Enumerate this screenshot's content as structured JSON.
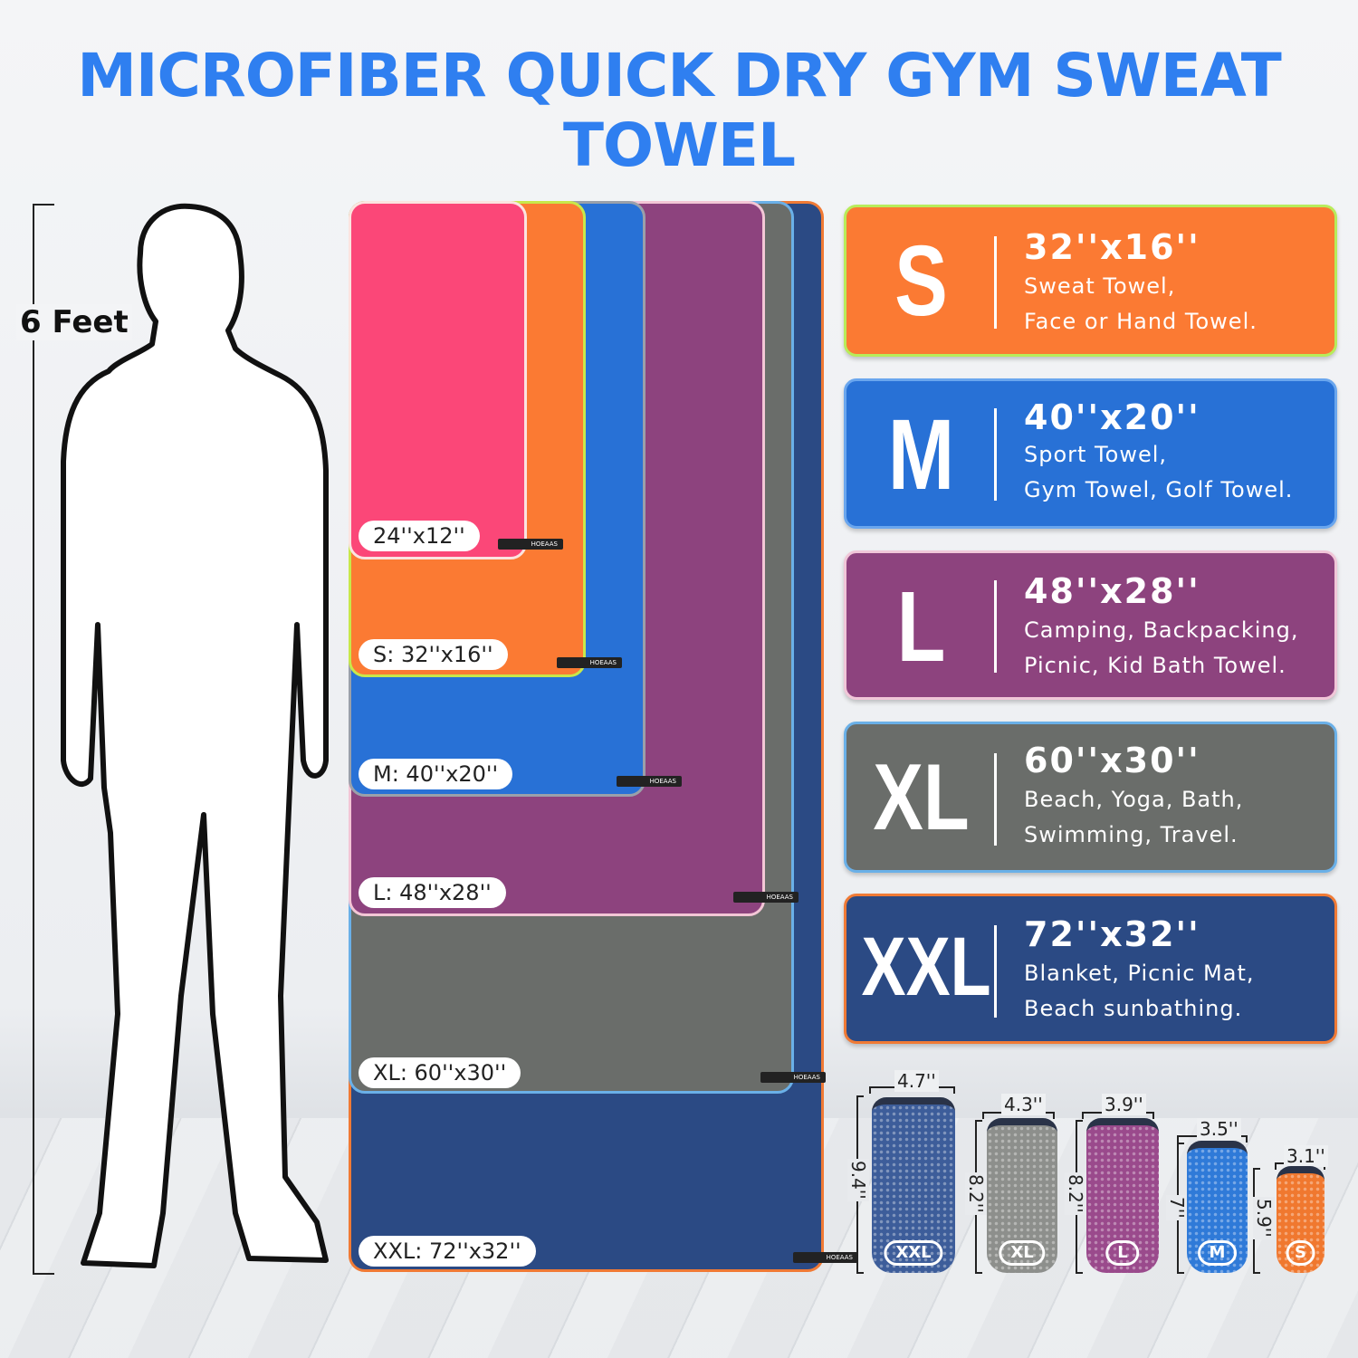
{
  "title": "MICROFIBER QUICK DRY GYM SWEAT TOWEL",
  "height_label": "6 Feet",
  "towels": [
    {
      "label": "XXL: 72''x32''",
      "color": "#2b4a84",
      "border": "#f07a35"
    },
    {
      "label": "XL: 60''x30''",
      "color": "#6a6d6a",
      "border": "#6ab0e8"
    },
    {
      "label": "L: 48''x28''",
      "color": "#8d437e",
      "border": "#f3c6d6"
    },
    {
      "label": "M: 40''x20''",
      "color": "#2871d6",
      "border": "#9aa0aa"
    },
    {
      "label": "S: 32''x16''",
      "color": "#fb7a33",
      "border": "#c8e84a"
    },
    {
      "label": "24''x12''",
      "color": "#fb4778",
      "border": "#fbe4e0"
    }
  ],
  "tag_text": "HOEAAS",
  "cards": [
    {
      "size": "S",
      "dims": "32''x16''",
      "line1": "Sweat Towel,",
      "line2": "Face or Hand Towel.",
      "color": "#fb7a33",
      "border": "#b8ec5a"
    },
    {
      "size": "M",
      "dims": "40''x20''",
      "line1": "Sport Towel,",
      "line2": "Gym Towel, Golf Towel.",
      "color": "#2871d6",
      "border": "#6aa6ee"
    },
    {
      "size": "L",
      "dims": "48''x28''",
      "line1": "Camping, Backpacking,",
      "line2": "Picnic, Kid Bath Towel.",
      "color": "#8d437e",
      "border": "#f1c6d8"
    },
    {
      "size": "XL",
      "dims": "60''x30''",
      "line1": "Beach, Yoga, Bath,",
      "line2": "Swimming, Travel.",
      "color": "#6a6d6a",
      "border": "#6ab0e8"
    },
    {
      "size": "XXL",
      "dims": "72''x32''",
      "line1": "Blanket, Picnic Mat,",
      "line2": "Beach sunbathing.",
      "color": "#2b4a84",
      "border": "#f07a35"
    }
  ],
  "bags": [
    {
      "size": "XXL",
      "width": "4.7''",
      "height": "9.4''",
      "color": "#3d5d9a"
    },
    {
      "size": "XL",
      "width": "4.3''",
      "height": "8.2''",
      "color": "#8d8f8c"
    },
    {
      "size": "L",
      "width": "3.9''",
      "height": "8.2''",
      "color": "#9a4a8c"
    },
    {
      "size": "M",
      "width": "3.5''",
      "height": "7''",
      "color": "#2f7ad8"
    },
    {
      "size": "S",
      "width": "3.1''",
      "height": "5.9''",
      "color": "#f0782f"
    }
  ]
}
